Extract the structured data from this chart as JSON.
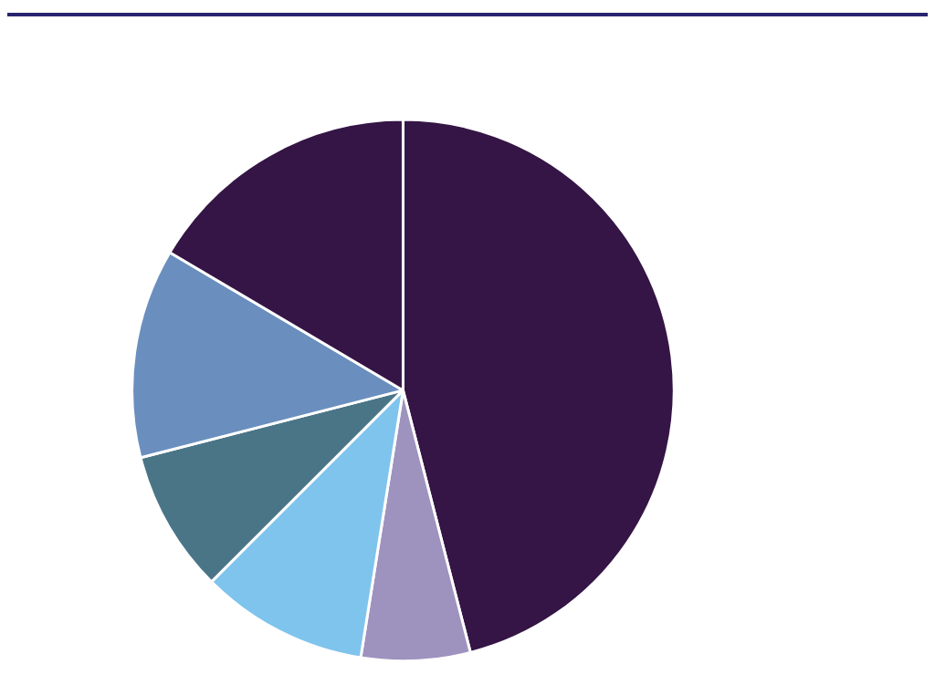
{
  "chart_data": {
    "type": "pie",
    "categories": [
      null,
      null,
      null,
      null,
      null,
      null
    ],
    "values": [
      46,
      6.5,
      10,
      8.5,
      12.5,
      16.5
    ],
    "colors": [
      "#341545",
      "#9e92bf",
      "#7fc4ec",
      "#4a7587",
      "#6a8fbe",
      "#341545"
    ]
  }
}
